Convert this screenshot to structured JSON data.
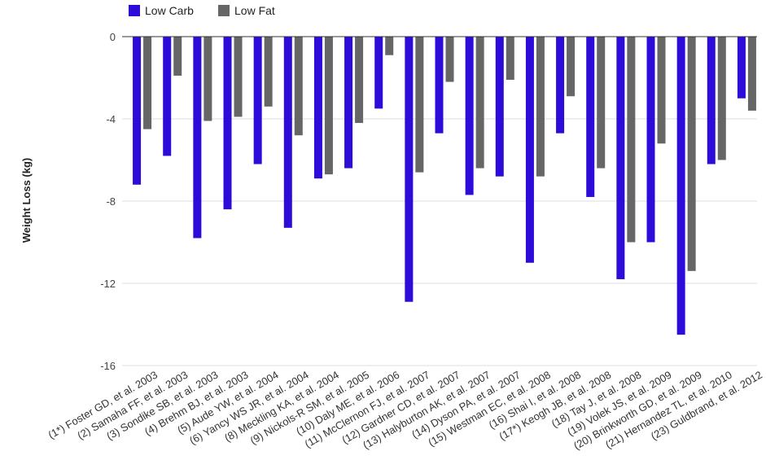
{
  "chart_data": {
    "type": "bar",
    "ylabel": "Weight Loss (kg)",
    "ylim": [
      -16,
      0
    ],
    "yticks": [
      0,
      -4,
      -8,
      -12,
      -16
    ],
    "grid": true,
    "legend_position": "top-left",
    "categories": [
      "(1*) Foster GD, et al. 2003",
      "(2) Samaha FF, et al. 2003",
      "(3) Sondike SB, et al. 2003",
      "(4) Brehm BJ, et al. 2003",
      "(5) Aude YW, et al. 2004",
      "(6) Yancy WS JR, et al. 2004",
      "(8) Meckling KA, et al. 2004",
      "(9) Nickols-R SM, et al. 2005",
      "(10) Daly ME, et al. 2006",
      "(11) McClernon FJ, et al. 2007",
      "(12) Gardner CD, et al. 2007",
      "(13) Halyburton AK, et al. 2007",
      "(14) Dyson PA, et al. 2007",
      "(15) Westman EC, et al. 2008",
      "(16) Shai I, et al. 2008",
      "(17*) Keogh JB, et al. 2008",
      "(18) Tay J, et al. 2008",
      "(19) Volek JS, et al. 2009",
      "(20) Brinkworth GD, et al. 2009",
      "(21) Hernandez TL, et al. 2010",
      "(23) Guldbrand, et al. 2012"
    ],
    "series": [
      {
        "name": "Low Carb",
        "color": "#2d0bd8",
        "values": [
          -7.2,
          -5.8,
          -9.8,
          -8.4,
          -6.2,
          -9.3,
          -6.9,
          -6.4,
          -3.5,
          -12.9,
          -4.7,
          -7.7,
          -6.8,
          -11.0,
          -4.7,
          -7.8,
          -11.8,
          -10.0,
          -14.5,
          -6.2,
          -3.0
        ]
      },
      {
        "name": "Low Fat",
        "color": "#666666",
        "values": [
          -4.5,
          -1.9,
          -4.1,
          -3.9,
          -3.4,
          -4.8,
          -6.7,
          -4.2,
          -0.9,
          -6.6,
          -2.2,
          -6.4,
          -2.1,
          -6.8,
          -2.9,
          -6.4,
          -10.0,
          -5.2,
          -11.4,
          -6.0,
          -3.6
        ]
      }
    ]
  },
  "colors": {
    "grid": "#dddddd",
    "zero_line": "#333333"
  }
}
